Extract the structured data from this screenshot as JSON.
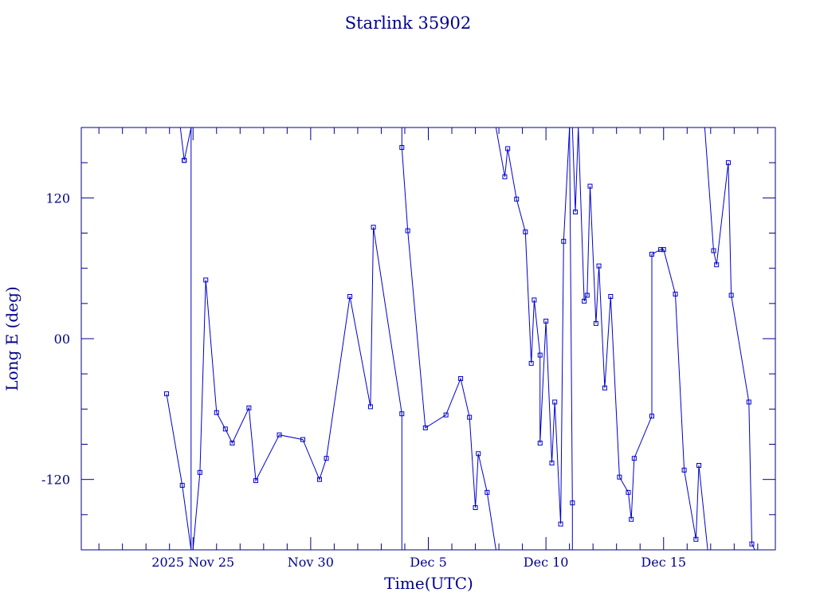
{
  "chart_data": {
    "type": "line",
    "title": "Starlink 35902",
    "xlabel": "Time(UTC)",
    "ylabel": "Long E (deg)",
    "xlim": [
      "2025-11-20T06:00",
      "2025-12-19T18:00"
    ],
    "ylim": [
      -180,
      180
    ],
    "x_ticks": [
      {
        "label": "2025 Nov 25",
        "value": "2025-11-25"
      },
      {
        "label": "Nov 30",
        "value": "2025-11-30"
      },
      {
        "label": "Dec  5",
        "value": "2025-12-05"
      },
      {
        "label": "Dec 10",
        "value": "2025-12-10"
      },
      {
        "label": "Dec 15",
        "value": "2025-12-15"
      }
    ],
    "y_ticks": [
      {
        "label": "120",
        "value": 120
      },
      {
        "label": "00",
        "value": 0
      },
      {
        "label": "-120",
        "value": -120
      }
    ],
    "colors": {
      "axes": "#00008b",
      "series": "#0000cd"
    },
    "series": [
      {
        "points": [
          [
            "2025-11-23T21:00",
            -47
          ],
          [
            "2025-11-24T13:00",
            -125
          ],
          [
            "2025-11-24T22:00",
            -180
          ],
          [
            "2025-11-24T22:00",
            180
          ],
          [
            "2025-11-24T15:00",
            152
          ],
          [
            "2025-11-24T15:00",
            152
          ],
          [
            "2025-11-24T11:00",
            180
          ]
        ]
      },
      {
        "points": [
          [
            "2025-11-24T22:00",
            -180
          ],
          [
            "2025-11-25T00:00",
            -180
          ],
          [
            "2025-11-25T07:00",
            -114
          ],
          [
            "2025-11-25T13:00",
            50
          ],
          [
            "2025-11-26T00:00",
            -63
          ],
          [
            "2025-11-26T09:00",
            -77
          ],
          [
            "2025-11-26T16:00",
            -89
          ],
          [
            "2025-11-27T09:00",
            -59
          ],
          [
            "2025-11-27T16:00",
            -121
          ],
          [
            "2025-11-28T16:00",
            -82
          ],
          [
            "2025-11-29T16:00",
            -86
          ],
          [
            "2025-11-30T09:00",
            -120
          ],
          [
            "2025-11-30T16:00",
            -102
          ],
          [
            "2025-12-01T16:00",
            36
          ],
          [
            "2025-12-02T13:00",
            -58
          ],
          [
            "2025-12-02T16:00",
            95
          ],
          [
            "2025-12-03T21:00",
            -64
          ],
          [
            "2025-12-03T21:00",
            -180
          ]
        ]
      },
      {
        "points": [
          [
            "2025-12-03T21:00",
            180
          ],
          [
            "2025-12-03T21:00",
            163
          ],
          [
            "2025-12-04T03:00",
            92
          ],
          [
            "2025-12-04T21:00",
            -76
          ],
          [
            "2025-12-05T18:00",
            -65
          ],
          [
            "2025-12-06T09:00",
            -34
          ],
          [
            "2025-12-06T18:00",
            -67
          ],
          [
            "2025-12-07T00:00",
            -144
          ],
          [
            "2025-12-07T03:00",
            -98
          ],
          [
            "2025-12-07T12:00",
            -131
          ],
          [
            "2025-12-07T21:00",
            -180
          ]
        ]
      },
      {
        "points": [
          [
            "2025-12-07T21:00",
            180
          ],
          [
            "2025-12-08T06:00",
            138
          ],
          [
            "2025-12-08T09:00",
            162
          ],
          [
            "2025-12-08T18:00",
            119
          ],
          [
            "2025-12-09T03:00",
            91
          ],
          [
            "2025-12-09T09:00",
            -21
          ],
          [
            "2025-12-09T12:00",
            33
          ],
          [
            "2025-12-09T18:00",
            -14
          ],
          [
            "2025-12-09T18:00",
            -89
          ],
          [
            "2025-12-10T00:00",
            15
          ],
          [
            "2025-12-10T06:00",
            -106
          ],
          [
            "2025-12-10T09:00",
            -54
          ],
          [
            "2025-12-10T15:00",
            -158
          ],
          [
            "2025-12-10T18:00",
            83
          ],
          [
            "2025-12-11T00:00",
            180
          ]
        ]
      },
      {
        "points": [
          [
            "2025-12-11T00:00",
            180
          ],
          [
            "2025-12-11T03:00",
            -140
          ],
          [
            "2025-12-11T03:00",
            -180
          ]
        ]
      },
      {
        "points": [
          [
            "2025-12-11T03:00",
            180
          ],
          [
            "2025-12-11T06:00",
            108
          ],
          [
            "2025-12-11T09:00",
            180
          ],
          [
            "2025-12-11T15:00",
            32
          ],
          [
            "2025-12-11T18:00",
            37
          ],
          [
            "2025-12-11T21:00",
            130
          ],
          [
            "2025-12-12T03:00",
            13
          ],
          [
            "2025-12-12T06:00",
            62
          ],
          [
            "2025-12-12T12:00",
            -42
          ],
          [
            "2025-12-12T18:00",
            36
          ],
          [
            "2025-12-13T03:00",
            -118
          ],
          [
            "2025-12-13T12:00",
            -131
          ],
          [
            "2025-12-13T15:00",
            -154
          ],
          [
            "2025-12-13T18:00",
            -102
          ],
          [
            "2025-12-14T12:00",
            -66
          ],
          [
            "2025-12-14T12:00",
            72
          ],
          [
            "2025-12-14T21:00",
            76
          ],
          [
            "2025-12-15T00:00",
            76
          ],
          [
            "2025-12-15T12:00",
            38
          ],
          [
            "2025-12-15T21:00",
            -112
          ],
          [
            "2025-12-16T09:00",
            -171
          ],
          [
            "2025-12-16T12:00",
            -108
          ],
          [
            "2025-12-16T21:00",
            -180
          ]
        ]
      },
      {
        "points": [
          [
            "2025-12-16T18:00",
            180
          ],
          [
            "2025-12-17T03:00",
            75
          ],
          [
            "2025-12-17T06:00",
            63
          ],
          [
            "2025-12-17T18:00",
            150
          ],
          [
            "2025-12-17T21:00",
            37
          ],
          [
            "2025-12-18T15:00",
            -54
          ],
          [
            "2025-12-18T18:00",
            -175
          ],
          [
            "2025-12-18T21:00",
            -180
          ]
        ]
      }
    ]
  }
}
